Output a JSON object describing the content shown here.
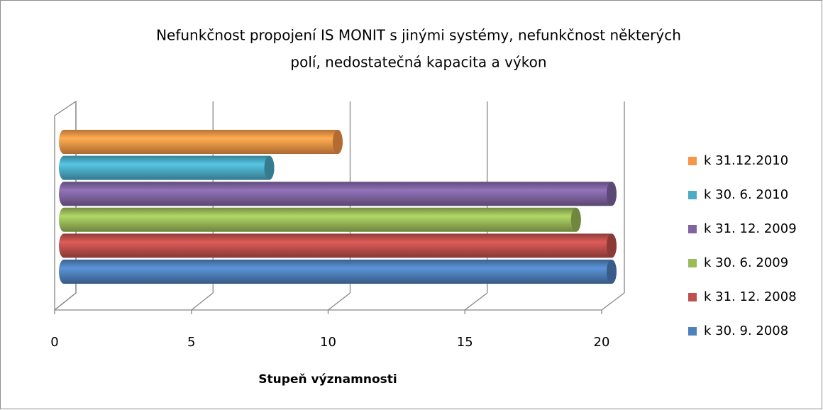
{
  "chart_data": {
    "type": "bar",
    "orientation": "horizontal",
    "style": "3d-cylinder",
    "title": "Nefunkčnost propojení IS MONIT s jinými systémy, nefunkčnost některých polí, nedostatečná kapacita a výkon",
    "title_lines": [
      "Nefunkčnost propojení IS MONIT s jinými systémy, nefunkčnost některých",
      "polí, nedostatečná kapacita a výkon"
    ],
    "xlabel": "Stupeň významnosti",
    "categories": [
      null
    ],
    "series": [
      {
        "name": "k 30. 9. 2008",
        "color": "#4f81bd",
        "values": [
          20
        ]
      },
      {
        "name": "k 31. 12. 2008",
        "color": "#c0504d",
        "values": [
          20
        ]
      },
      {
        "name": "k 30. 6. 2009",
        "color": "#9bbb59",
        "values": [
          18.7
        ]
      },
      {
        "name": "k 31. 12. 2009",
        "color": "#8064a2",
        "values": [
          20
        ]
      },
      {
        "name": "k 30. 6. 2010",
        "color": "#4bacc6",
        "values": [
          7.5
        ]
      },
      {
        "name": "k 31.12.2010",
        "color": "#f79646",
        "values": [
          10
        ]
      }
    ],
    "xlim": [
      0,
      20
    ],
    "xticks": [
      0,
      5,
      10,
      15,
      20
    ],
    "grid": true,
    "legend": "right"
  }
}
